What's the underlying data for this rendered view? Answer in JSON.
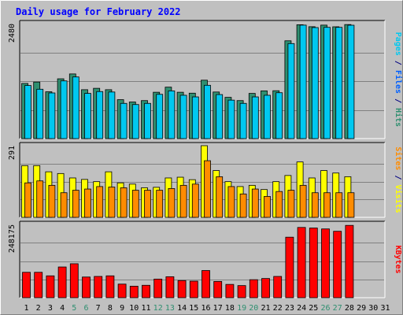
{
  "chart_data": {
    "type": "bar",
    "title": "Daily usage for February 2022",
    "categories": [
      "1",
      "2",
      "3",
      "4",
      "5",
      "6",
      "7",
      "8",
      "9",
      "10",
      "11",
      "12",
      "13",
      "14",
      "15",
      "16",
      "17",
      "18",
      "19",
      "20",
      "21",
      "22",
      "23",
      "24",
      "25",
      "26",
      "27",
      "28",
      "29",
      "30",
      "31"
    ],
    "weekend_days": [
      "5",
      "6",
      "12",
      "13",
      "19",
      "20",
      "26",
      "27"
    ],
    "panels": [
      {
        "max_label": "2480",
        "ylim": [
          0,
          2480
        ],
        "series": [
          {
            "name": "Hits",
            "color": "#2f8f70",
            "values": [
              1190,
              1220,
              1010,
              1290,
              1395,
              1055,
              1085,
              1055,
              840,
              790,
              820,
              1000,
              1110,
              1000,
              980,
              1260,
              1005,
              890,
              820,
              975,
              1030,
              1033,
              2110,
              2456,
              2414,
              2448,
              2412,
              2460,
              null,
              null,
              null
            ]
          },
          {
            "name": "Files",
            "color": "#00c8f0",
            "values": [
              1145,
              1065,
              985,
              1245,
              1330,
              975,
              1015,
              1005,
              760,
              735,
              760,
              955,
              1030,
              935,
              900,
              1150,
              950,
              830,
              760,
              900,
              935,
              990,
              2050,
              2448,
              2395,
              2400,
              2400,
              2446,
              null,
              null,
              null
            ]
          }
        ],
        "labels": [
          {
            "text": "Pages",
            "color": "#00c8f0"
          },
          {
            "text": " / ",
            "color": "#000080"
          },
          {
            "text": "Files",
            "color": "#0060ff"
          },
          {
            "text": " / ",
            "color": "#000080"
          },
          {
            "text": "Hits",
            "color": "#2f8f70"
          }
        ]
      },
      {
        "max_label": "291",
        "ylim": [
          0,
          291
        ],
        "series": [
          {
            "name": "Visits",
            "color": "#ffff00",
            "values": [
              210,
              210,
              185,
              178,
              160,
              154,
              145,
              185,
              140,
              135,
              120,
              122,
              160,
              163,
              153,
              291,
              190,
              145,
              125,
              130,
              113,
              145,
              170,
              225,
              160,
              190,
              180,
              165,
              null,
              null,
              null
            ]
          },
          {
            "name": "Sites",
            "color": "#ff8c00",
            "values": [
              140,
              148,
              130,
              100,
              110,
              115,
              125,
              123,
              120,
              110,
              110,
              110,
              117,
              130,
              135,
              230,
              165,
              125,
              95,
              115,
              85,
              105,
              110,
              130,
              100,
              100,
              100,
              100,
              null,
              null,
              null
            ]
          }
        ],
        "labels": [
          {
            "text": "Sites",
            "color": "#ff8c00"
          },
          {
            "text": " / ",
            "color": "#000080"
          },
          {
            "text": "Visits",
            "color": "#ffff00"
          }
        ]
      },
      {
        "max_label": "248175",
        "ylim": [
          0,
          248175
        ],
        "series": [
          {
            "name": "KBytes",
            "color": "#ff0000",
            "values": [
              86000,
              86000,
              74000,
              104000,
              115000,
              70000,
              72000,
              74000,
              46000,
              39000,
              42000,
              63000,
              71000,
              58000,
              56000,
              92000,
              55000,
              45000,
              41000,
              61000,
              65000,
              72000,
              205000,
              238000,
              236000,
              233000,
              225000,
              245000,
              null,
              null,
              null
            ]
          }
        ],
        "labels": [
          {
            "text": "KBytes",
            "color": "#ff0000"
          }
        ]
      }
    ]
  },
  "colors": {
    "background": "#c0c0c0",
    "plot": "#c0c0c0",
    "title": "#0000ff",
    "tick_weekday": "#000000",
    "tick_weekend": "#2f8f70",
    "gridline": "#808080"
  }
}
